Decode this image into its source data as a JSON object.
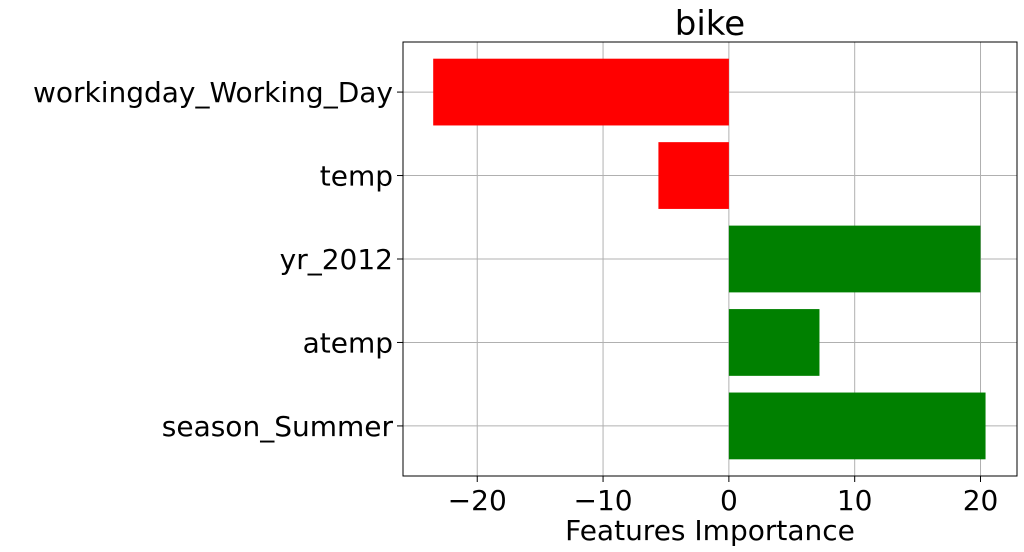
{
  "chart_data": {
    "type": "bar",
    "orientation": "horizontal",
    "title": "bike",
    "xlabel": "Features Importance",
    "ylabel": "",
    "categories": [
      "workingday_Working_Day",
      "temp",
      "yr_2012",
      "atemp",
      "season_Summer"
    ],
    "values": [
      -23.5,
      -5.6,
      20.0,
      7.2,
      20.4
    ],
    "bar_colors": [
      "#ff0000",
      "#ff0000",
      "#008000",
      "#008000",
      "#008000"
    ],
    "xlim": [
      -25.9,
      22.9
    ],
    "xticks": [
      -20,
      -10,
      0,
      10,
      20
    ],
    "xtick_labels": [
      "−20",
      "−10",
      "0",
      "10",
      "20"
    ],
    "grid": true,
    "legend": "none"
  }
}
